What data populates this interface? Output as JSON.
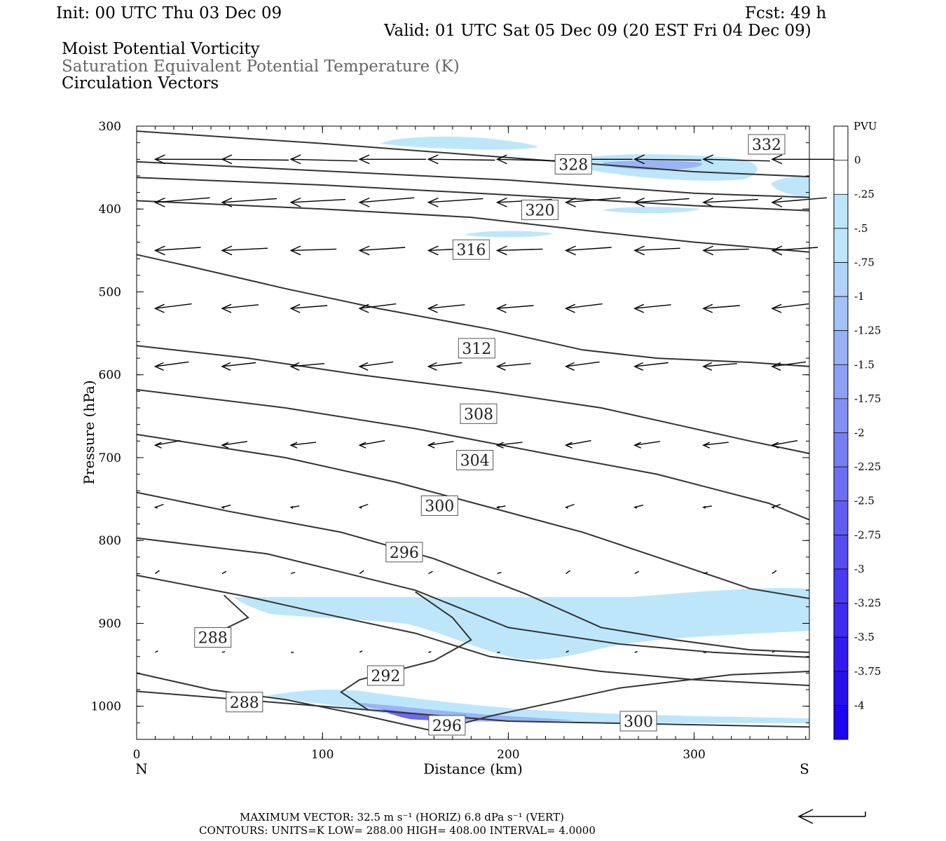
{
  "header": {
    "init": "Init: 00 UTC Thu 03 Dec 09",
    "fcst": "Fcst:   49 h",
    "valid": "Valid: 01 UTC Sat 05 Dec 09 (20 EST Fri 04 Dec 09)",
    "fields": [
      "Moist Potential Vorticity",
      "Saturation Equivalent Potential Temperature (K)",
      "Circulation Vectors"
    ]
  },
  "footer": {
    "max_vector": "MAXIMUM VECTOR:  32.5 m s⁻¹ (HORIZ)          6.8 dPa s⁻¹ (VERT)",
    "contours": "CONTOURS:  UNITS=K  LOW=   288.00        HIGH=   408.00       INTERVAL=     4.0000"
  },
  "colors": {
    "contour": "#333333",
    "vector": "#000000",
    "mpv_light": "#bde6fb",
    "mpv_mid": "#9ab4f5",
    "mpv_dark": "#6a6af2"
  },
  "chart_data": {
    "type": "cross-section",
    "x_axis": {
      "label": "Distance (km)",
      "range": [
        0,
        362
      ],
      "ticks": [
        "0",
        "100",
        "200",
        "300"
      ],
      "left_end": "N",
      "right_end": "S"
    },
    "y_axis": {
      "label": "Pressure (hPa)",
      "range": [
        300,
        1040
      ],
      "ticks": [
        "300",
        "400",
        "500",
        "600",
        "700",
        "800",
        "900",
        "1000"
      ]
    },
    "colorbar": {
      "title": "PVU",
      "labels": [
        "0",
        "-.25",
        "-.5",
        "-.75",
        "-1",
        "-1.25",
        "-1.5",
        "-1.75",
        "-2",
        "-2.25",
        "-2.5",
        "-2.75",
        "-3",
        "-3.25",
        "-3.5",
        "-3.75",
        "-4"
      ],
      "colors": [
        "#ffffff",
        "#ffffff",
        "#bde6fb",
        "#bde6fb",
        "#aed4f8",
        "#a3c3f7",
        "#98b2f5",
        "#8da1f4",
        "#8290f3",
        "#767ff2",
        "#6b6ff1",
        "#605ef0",
        "#554df0",
        "#493cef",
        "#3e2bee",
        "#331bee",
        "#2810ed",
        "#1d05ee"
      ]
    },
    "contour_labels": [
      {
        "text": "332",
        "x": 339,
        "p": 322
      },
      {
        "text": "328",
        "x": 235,
        "p": 346
      },
      {
        "text": "320",
        "x": 217,
        "p": 401
      },
      {
        "text": "316",
        "x": 180,
        "p": 449
      },
      {
        "text": "312",
        "x": 183,
        "p": 568
      },
      {
        "text": "308",
        "x": 184,
        "p": 647
      },
      {
        "text": "304",
        "x": 182,
        "p": 703
      },
      {
        "text": "300",
        "x": 163,
        "p": 758
      },
      {
        "text": "296",
        "x": 144,
        "p": 814
      },
      {
        "text": "288",
        "x": 41,
        "p": 917
      },
      {
        "text": "292",
        "x": 134,
        "p": 963
      },
      {
        "text": "288",
        "x": 58,
        "p": 995
      },
      {
        "text": "296",
        "x": 167,
        "p": 1023
      },
      {
        "text": "300",
        "x": 270,
        "p": 1018
      }
    ],
    "contours": [
      [
        [
          0,
          306
        ],
        [
          100,
          321
        ],
        [
          200,
          338
        ],
        [
          300,
          355
        ],
        [
          362,
          361
        ]
      ],
      [
        [
          0,
          343
        ],
        [
          100,
          354
        ],
        [
          200,
          365
        ],
        [
          300,
          381
        ],
        [
          362,
          386
        ]
      ],
      [
        [
          0,
          362
        ],
        [
          100,
          371
        ],
        [
          200,
          383
        ],
        [
          300,
          396
        ],
        [
          362,
          402
        ]
      ],
      [
        [
          0,
          390
        ],
        [
          100,
          400
        ],
        [
          180,
          410
        ],
        [
          250,
          428
        ],
        [
          300,
          440
        ],
        [
          362,
          452
        ]
      ],
      [
        [
          0,
          455
        ],
        [
          30,
          470
        ],
        [
          80,
          496
        ],
        [
          130,
          520
        ],
        [
          190,
          545
        ],
        [
          240,
          570
        ],
        [
          280,
          580
        ],
        [
          330,
          585
        ],
        [
          362,
          590
        ]
      ],
      [
        [
          0,
          565
        ],
        [
          60,
          580
        ],
        [
          120,
          600
        ],
        [
          190,
          620
        ],
        [
          250,
          640
        ],
        [
          290,
          660
        ],
        [
          330,
          680
        ],
        [
          362,
          695
        ]
      ],
      [
        [
          0,
          618
        ],
        [
          80,
          640
        ],
        [
          150,
          665
        ],
        [
          220,
          695
        ],
        [
          280,
          720
        ],
        [
          340,
          755
        ],
        [
          362,
          775
        ]
      ],
      [
        [
          0,
          672
        ],
        [
          80,
          700
        ],
        [
          140,
          730
        ],
        [
          190,
          760
        ],
        [
          240,
          790
        ],
        [
          280,
          820
        ],
        [
          330,
          858
        ],
        [
          362,
          870
        ]
      ],
      [
        [
          0,
          742
        ],
        [
          50,
          765
        ],
        [
          110,
          790
        ],
        [
          160,
          822
        ],
        [
          210,
          865
        ],
        [
          250,
          905
        ],
        [
          290,
          920
        ],
        [
          330,
          932
        ],
        [
          362,
          935
        ]
      ],
      [
        [
          0,
          797
        ],
        [
          70,
          816
        ],
        [
          150,
          860
        ],
        [
          200,
          905
        ],
        [
          260,
          925
        ],
        [
          310,
          935
        ],
        [
          362,
          941
        ]
      ],
      [
        [
          0,
          842
        ],
        [
          60,
          868
        ],
        [
          100,
          888
        ],
        [
          150,
          912
        ],
        [
          190,
          940
        ],
        [
          250,
          958
        ],
        [
          300,
          968
        ],
        [
          362,
          975
        ]
      ],
      [
        [
          0,
          960
        ],
        [
          40,
          980
        ],
        [
          80,
          992
        ],
        [
          120,
          1010
        ],
        [
          160,
          1030
        ],
        [
          190,
          1012
        ],
        [
          260,
          978
        ],
        [
          320,
          962
        ],
        [
          362,
          958
        ]
      ],
      [
        [
          0,
          982
        ],
        [
          100,
          1000
        ],
        [
          200,
          1018
        ],
        [
          362,
          1025
        ]
      ]
    ]
  }
}
